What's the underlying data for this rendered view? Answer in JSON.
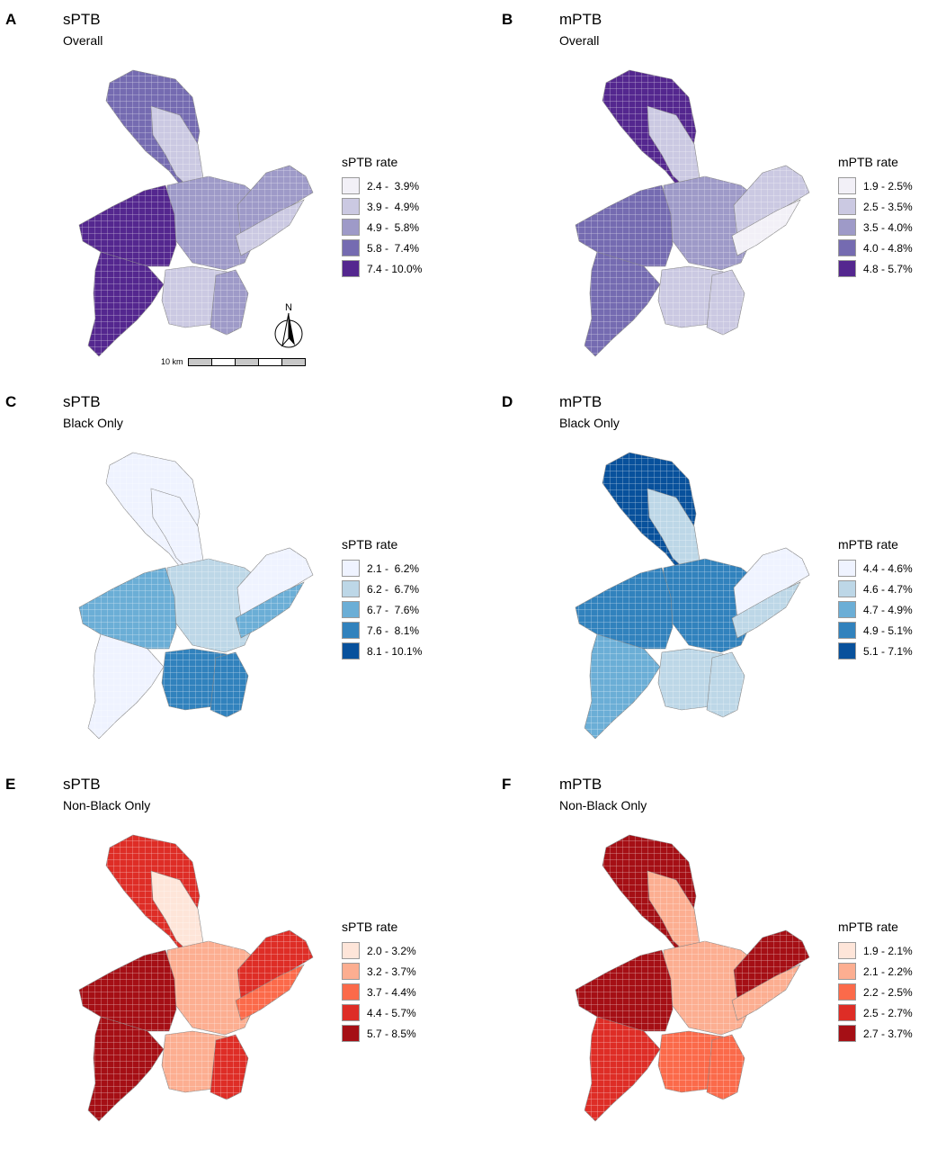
{
  "panels": [
    {
      "letter": "A",
      "title": "sPTB",
      "subtitle": "Overall",
      "legend_title": "sPTB rate",
      "classes": [
        "2.4 -  3.9%",
        "3.9 -  4.9%",
        "4.9 -  5.8%",
        "5.8 -  7.4%",
        "7.4 - 10.0%"
      ],
      "colors": [
        "#f2f0f7",
        "#cbc9e2",
        "#9e9ac8",
        "#756bb1",
        "#54278f"
      ],
      "regions": {
        "nw": 3,
        "ne": 1,
        "center": 2,
        "west": 4,
        "southwest": 4,
        "east": 2,
        "south": 1,
        "southeast": 2,
        "river": 1
      }
    },
    {
      "letter": "B",
      "title": "mPTB",
      "subtitle": "Overall",
      "legend_title": "mPTB rate",
      "classes": [
        "1.9 - 2.5%",
        "2.5 - 3.5%",
        "3.5 - 4.0%",
        "4.0 - 4.8%",
        "4.8 - 5.7%"
      ],
      "colors": [
        "#f2f0f7",
        "#cbc9e2",
        "#9e9ac8",
        "#756bb1",
        "#54278f"
      ],
      "regions": {
        "nw": 4,
        "ne": 1,
        "center": 2,
        "west": 3,
        "southwest": 3,
        "east": 1,
        "south": 1,
        "southeast": 1,
        "river": 0
      }
    },
    {
      "letter": "C",
      "title": "sPTB",
      "subtitle": "Black Only",
      "legend_title": "sPTB rate",
      "classes": [
        "2.1 -  6.2%",
        "6.2 -  6.7%",
        "6.7 -  7.6%",
        "7.6 -  8.1%",
        "8.1 - 10.1%"
      ],
      "colors": [
        "#eff3ff",
        "#bdd7e7",
        "#6baed6",
        "#3182bd",
        "#08519c"
      ],
      "regions": {
        "nw": 0,
        "ne": 0,
        "center": 1,
        "west": 2,
        "southwest": 0,
        "east": 0,
        "south": 3,
        "southeast": 3,
        "river": 2
      }
    },
    {
      "letter": "D",
      "title": "mPTB",
      "subtitle": "Black Only",
      "legend_title": "mPTB rate",
      "classes": [
        "4.4 - 4.6%",
        "4.6 - 4.7%",
        "4.7 - 4.9%",
        "4.9 - 5.1%",
        "5.1 - 7.1%"
      ],
      "colors": [
        "#eff3ff",
        "#bdd7e7",
        "#6baed6",
        "#3182bd",
        "#08519c"
      ],
      "regions": {
        "nw": 4,
        "ne": 1,
        "center": 3,
        "west": 3,
        "southwest": 2,
        "east": 0,
        "south": 1,
        "southeast": 1,
        "river": 1
      }
    },
    {
      "letter": "E",
      "title": "sPTB",
      "subtitle": "Non-Black Only",
      "legend_title": "sPTB rate",
      "classes": [
        "2.0 - 3.2%",
        "3.2 - 3.7%",
        "3.7 - 4.4%",
        "4.4 - 5.7%",
        "5.7 - 8.5%"
      ],
      "colors": [
        "#fee5d9",
        "#fcae91",
        "#fb6a4a",
        "#de2d26",
        "#a50f15"
      ],
      "regions": {
        "nw": 3,
        "ne": 0,
        "center": 1,
        "west": 4,
        "southwest": 4,
        "east": 3,
        "south": 1,
        "southeast": 3,
        "river": 2
      }
    },
    {
      "letter": "F",
      "title": "mPTB",
      "subtitle": "Non-Black Only",
      "legend_title": "mPTB rate",
      "classes": [
        "1.9 - 2.1%",
        "2.1 - 2.2%",
        "2.2 - 2.5%",
        "2.5 - 2.7%",
        "2.7 - 3.7%"
      ],
      "colors": [
        "#fee5d9",
        "#fcae91",
        "#fb6a4a",
        "#de2d26",
        "#a50f15"
      ],
      "regions": {
        "nw": 4,
        "ne": 1,
        "center": 1,
        "west": 4,
        "southwest": 3,
        "east": 4,
        "south": 2,
        "southeast": 2,
        "river": 1
      }
    }
  ],
  "north_label": "N",
  "scale_label": "10 km"
}
